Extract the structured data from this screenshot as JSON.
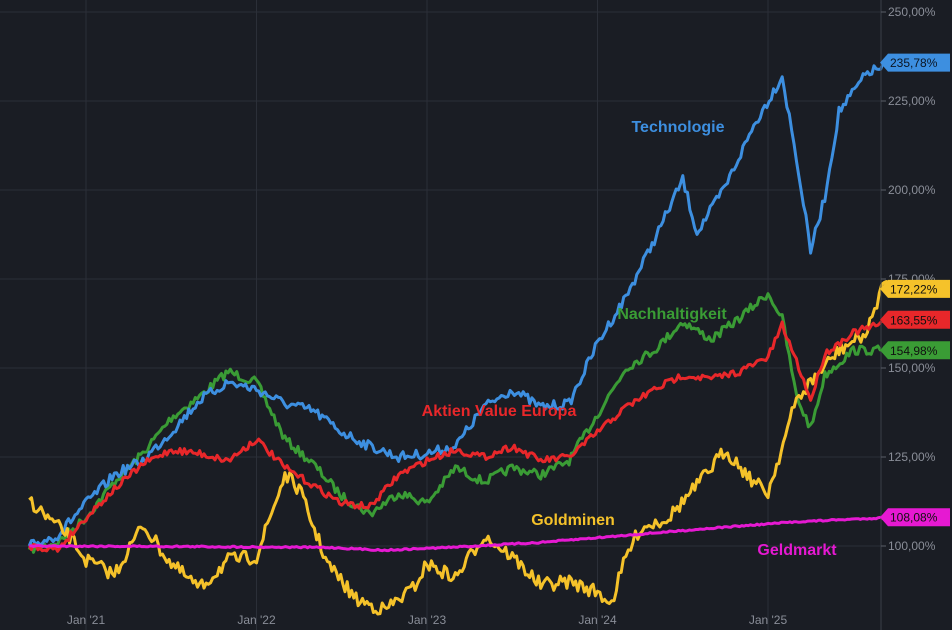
{
  "chart_data": {
    "type": "line",
    "x_start": "2020-09",
    "x_end": "2025-10",
    "x_ticks": [
      "Jan '21",
      "Jan '22",
      "Jan '23",
      "Jan '24",
      "Jan '25"
    ],
    "y_ticks": [
      "100,00%",
      "125,00%",
      "150,00%",
      "175,00%",
      "200,00%",
      "225,00%",
      "250,00%"
    ],
    "ylim": [
      90,
      255
    ],
    "grid": true,
    "series": [
      {
        "name": "Technologie",
        "color": "#3d8fe0",
        "last_value_label": "235,78%",
        "points": [
          [
            "2020-09",
            100
          ],
          [
            "2020-11",
            103
          ],
          [
            "2021-01",
            112
          ],
          [
            "2021-03",
            120
          ],
          [
            "2021-05",
            124
          ],
          [
            "2021-07",
            132
          ],
          [
            "2021-09",
            141
          ],
          [
            "2021-11",
            146
          ],
          [
            "2022-01",
            144
          ],
          [
            "2022-03",
            140
          ],
          [
            "2022-05",
            138
          ],
          [
            "2022-07",
            132
          ],
          [
            "2022-09",
            128
          ],
          [
            "2022-11",
            125
          ],
          [
            "2023-01",
            126
          ],
          [
            "2023-03",
            128
          ],
          [
            "2023-05",
            139
          ],
          [
            "2023-07",
            144
          ],
          [
            "2023-09",
            139
          ],
          [
            "2023-11",
            140
          ],
          [
            "2024-01",
            157
          ],
          [
            "2024-03",
            170
          ],
          [
            "2024-05",
            186
          ],
          [
            "2024-07",
            203
          ],
          [
            "2024-08",
            188
          ],
          [
            "2024-10",
            201
          ],
          [
            "2024-12",
            218
          ],
          [
            "2025-02",
            232
          ],
          [
            "2025-03",
            209
          ],
          [
            "2025-04",
            183
          ],
          [
            "2025-05",
            198
          ],
          [
            "2025-06",
            222
          ],
          [
            "2025-08",
            233
          ],
          [
            "2025-10",
            235.78
          ]
        ]
      },
      {
        "name": "Nachhaltigkeit",
        "color": "#3a9c35",
        "last_value_label": "154,98%",
        "points": [
          [
            "2020-09",
            99
          ],
          [
            "2020-11",
            101
          ],
          [
            "2021-01",
            108
          ],
          [
            "2021-03",
            118
          ],
          [
            "2021-05",
            126
          ],
          [
            "2021-07",
            136
          ],
          [
            "2021-09",
            142
          ],
          [
            "2021-11",
            149
          ],
          [
            "2022-01",
            146
          ],
          [
            "2022-03",
            130
          ],
          [
            "2022-05",
            123
          ],
          [
            "2022-07",
            114
          ],
          [
            "2022-09",
            109
          ],
          [
            "2022-11",
            115
          ],
          [
            "2023-01",
            112
          ],
          [
            "2023-03",
            122
          ],
          [
            "2023-05",
            118
          ],
          [
            "2023-07",
            122
          ],
          [
            "2023-09",
            120
          ],
          [
            "2023-11",
            124
          ],
          [
            "2024-01",
            137
          ],
          [
            "2024-03",
            150
          ],
          [
            "2024-05",
            155
          ],
          [
            "2024-07",
            163
          ],
          [
            "2024-09",
            158
          ],
          [
            "2024-11",
            164
          ],
          [
            "2025-01",
            171
          ],
          [
            "2025-02",
            164
          ],
          [
            "2025-03",
            142
          ],
          [
            "2025-04",
            133
          ],
          [
            "2025-05",
            148
          ],
          [
            "2025-07",
            155
          ],
          [
            "2025-10",
            154.98
          ]
        ]
      },
      {
        "name": "Aktien Value Europa",
        "color": "#e8272a",
        "last_value_label": "163,55%",
        "points": [
          [
            "2020-09",
            100
          ],
          [
            "2020-11",
            99
          ],
          [
            "2021-01",
            108
          ],
          [
            "2021-03",
            116
          ],
          [
            "2021-05",
            123
          ],
          [
            "2021-07",
            127
          ],
          [
            "2021-09",
            126
          ],
          [
            "2021-11",
            124
          ],
          [
            "2022-01",
            130
          ],
          [
            "2022-03",
            122
          ],
          [
            "2022-05",
            117
          ],
          [
            "2022-07",
            112
          ],
          [
            "2022-09",
            111
          ],
          [
            "2022-11",
            120
          ],
          [
            "2023-01",
            124
          ],
          [
            "2023-03",
            127
          ],
          [
            "2023-05",
            125
          ],
          [
            "2023-07",
            128
          ],
          [
            "2023-09",
            124
          ],
          [
            "2023-11",
            125
          ],
          [
            "2024-01",
            132
          ],
          [
            "2024-03",
            139
          ],
          [
            "2024-05",
            144
          ],
          [
            "2024-07",
            148
          ],
          [
            "2024-09",
            147
          ],
          [
            "2024-11",
            149
          ],
          [
            "2025-01",
            153
          ],
          [
            "2025-02",
            162
          ],
          [
            "2025-03",
            152
          ],
          [
            "2025-04",
            141
          ],
          [
            "2025-05",
            154
          ],
          [
            "2025-07",
            160
          ],
          [
            "2025-10",
            163.55
          ]
        ]
      },
      {
        "name": "Goldminen",
        "color": "#f5c22a",
        "last_value_label": "172,22%",
        "points": [
          [
            "2020-09",
            113
          ],
          [
            "2020-10",
            109
          ],
          [
            "2020-12",
            102
          ],
          [
            "2021-01",
            96
          ],
          [
            "2021-03",
            92
          ],
          [
            "2021-05",
            106
          ],
          [
            "2021-07",
            95
          ],
          [
            "2021-09",
            88
          ],
          [
            "2021-11",
            96
          ],
          [
            "2022-01",
            97
          ],
          [
            "2022-03",
            120
          ],
          [
            "2022-04",
            116
          ],
          [
            "2022-06",
            95
          ],
          [
            "2022-08",
            85
          ],
          [
            "2022-10",
            82
          ],
          [
            "2022-12",
            88
          ],
          [
            "2023-01",
            95
          ],
          [
            "2023-03",
            91
          ],
          [
            "2023-05",
            103
          ],
          [
            "2023-07",
            97
          ],
          [
            "2023-09",
            89
          ],
          [
            "2023-11",
            90
          ],
          [
            "2024-01",
            87
          ],
          [
            "2024-02",
            84
          ],
          [
            "2024-03",
            97
          ],
          [
            "2024-04",
            105
          ],
          [
            "2024-06",
            108
          ],
          [
            "2024-08",
            117
          ],
          [
            "2024-10",
            127
          ],
          [
            "2024-12",
            118
          ],
          [
            "2025-01",
            115
          ],
          [
            "2025-03",
            141
          ],
          [
            "2025-04",
            146
          ],
          [
            "2025-06",
            155
          ],
          [
            "2025-08",
            160
          ],
          [
            "2025-09",
            173
          ],
          [
            "2025-10",
            172.22
          ]
        ]
      },
      {
        "name": "Geldmarkt",
        "color": "#e619d2",
        "last_value_label": "108,08%",
        "points": [
          [
            "2020-09",
            100
          ],
          [
            "2021-06",
            99.9
          ],
          [
            "2022-06",
            99.6
          ],
          [
            "2022-10",
            98.8
          ],
          [
            "2023-03",
            99.7
          ],
          [
            "2023-09",
            101
          ],
          [
            "2024-03",
            103
          ],
          [
            "2024-09",
            105
          ],
          [
            "2025-03",
            106.8
          ],
          [
            "2025-10",
            108.08
          ]
        ]
      }
    ],
    "labels": [
      {
        "text": "Technologie",
        "series": "Technologie"
      },
      {
        "text": "Nachhaltigkeit",
        "series": "Nachhaltigkeit"
      },
      {
        "text": "Aktien Value Europa",
        "series": "Aktien Value Europa"
      },
      {
        "text": "Goldminen",
        "series": "Goldminen"
      },
      {
        "text": "Geldmarkt",
        "series": "Geldmarkt"
      }
    ]
  }
}
